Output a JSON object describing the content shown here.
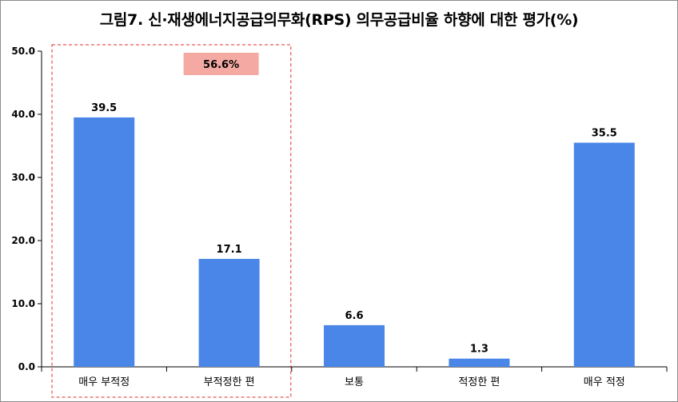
{
  "chart_data": {
    "type": "bar",
    "title": "그림7. 신·재생에너지공급의무화(RPS)  의무공급비율 하향에 대한 평가(%)",
    "categories": [
      "매우 부적정",
      "부적정한 편",
      "보통",
      "적정한 편",
      "매우 적정"
    ],
    "values": [
      39.5,
      17.1,
      6.6,
      1.3,
      35.5
    ],
    "data_labels": [
      "39.5",
      "17.1",
      "6.6",
      "1.3",
      "35.5"
    ],
    "ylim": [
      0,
      50
    ],
    "yticks": [
      "0.0",
      "10.0",
      "20.0",
      "30.0",
      "40.0",
      "50.0"
    ],
    "xlabel": "",
    "ylabel": "",
    "grid": false,
    "bar_color": "#4a86e8",
    "annotation": {
      "text": "56.6%",
      "box_color": "#f4a9a3",
      "group_border_color": "#e03030"
    }
  }
}
